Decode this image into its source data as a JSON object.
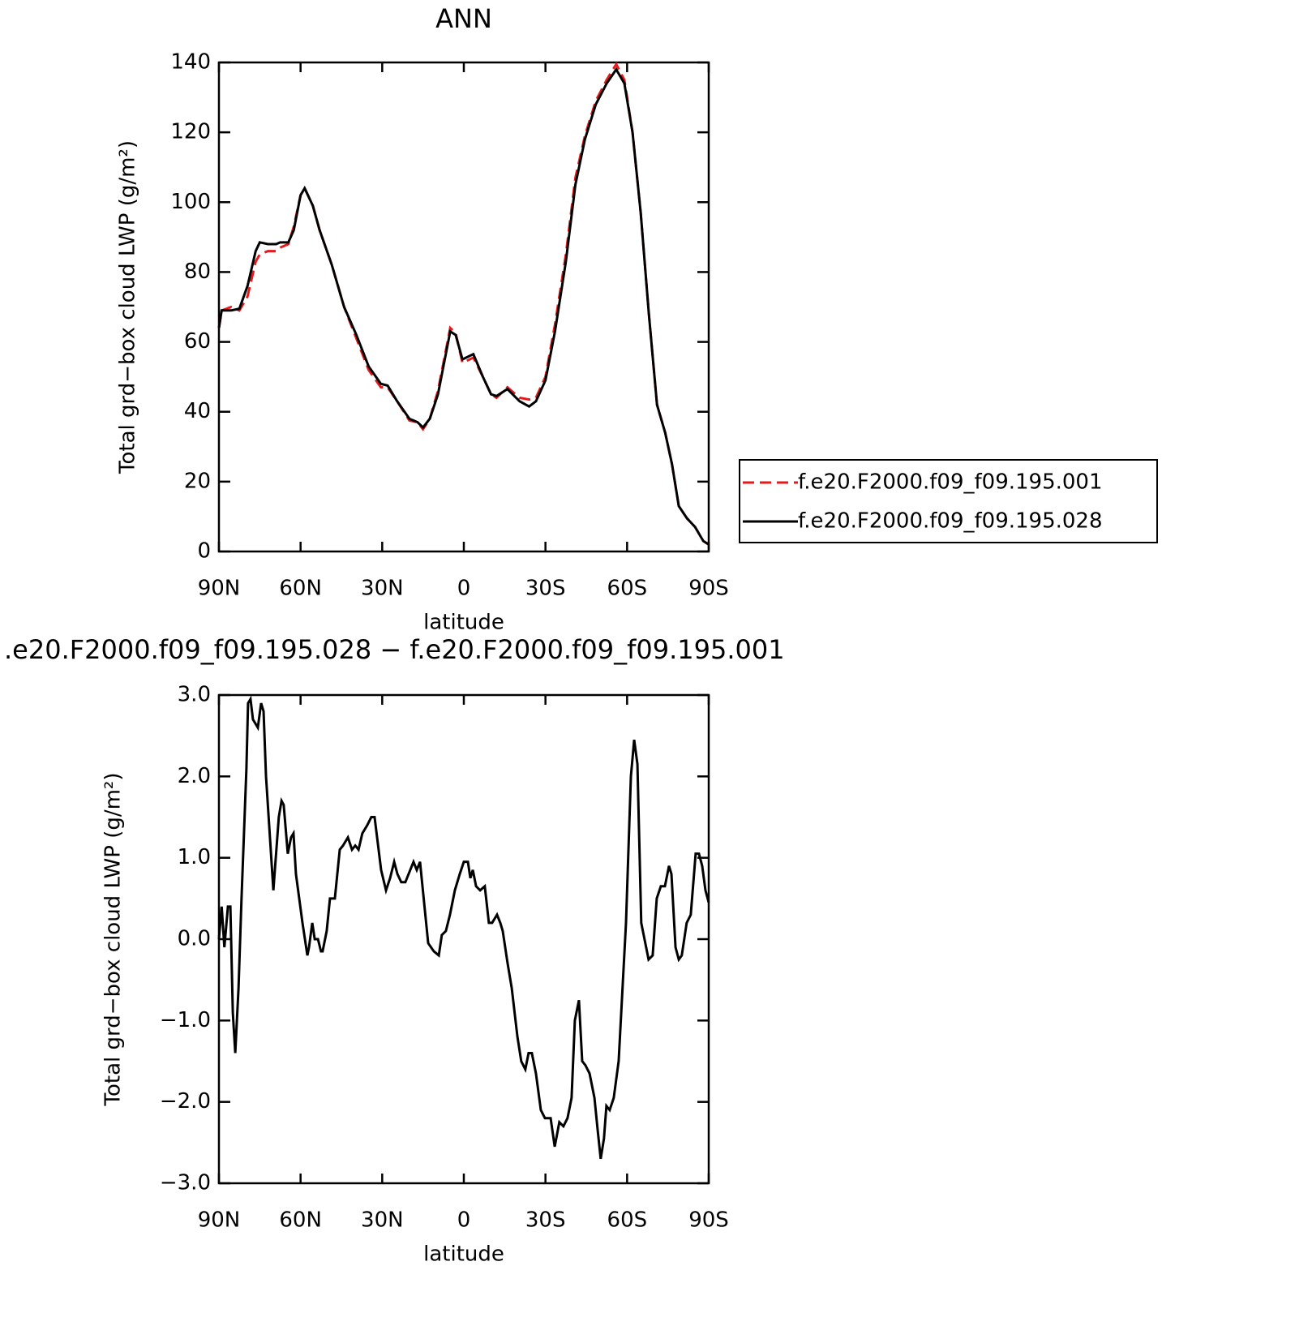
{
  "chart_data": [
    {
      "type": "line",
      "title": "ANN",
      "xlabel": "latitude",
      "ylabel": "Total grd−box cloud LWP (g/m²)",
      "xlim": [
        90,
        -90
      ],
      "xticks": [
        {
          "value": 90,
          "label": "90N"
        },
        {
          "value": 60,
          "label": "60N"
        },
        {
          "value": 30,
          "label": "30N"
        },
        0,
        {
          "value": -30,
          "label": "30S"
        },
        {
          "value": -60,
          "label": "60S"
        },
        {
          "value": -90,
          "label": "90S"
        }
      ],
      "ylim": [
        0,
        140
      ],
      "yticks": [
        0,
        20,
        40,
        60,
        80,
        100,
        120,
        140
      ],
      "legend": "right",
      "x": [
        90,
        89,
        85.5,
        82.5,
        79.5,
        76.5,
        75,
        72,
        69,
        67.5,
        64.5,
        62.5,
        60,
        58.5,
        55.5,
        53,
        48.5,
        44,
        39.5,
        35,
        30.5,
        28,
        24.5,
        20,
        17,
        15,
        12.5,
        9.5,
        7,
        5,
        3,
        0.5,
        -3.5,
        -7,
        -10,
        -12,
        -16,
        -20.5,
        -24,
        -26.5,
        -30,
        -33.5,
        -37.5,
        -41,
        -44.5,
        -48.5,
        -52.5,
        -56,
        -59,
        -62,
        -65,
        -68,
        -71,
        -74,
        -76.5,
        -79,
        -82,
        -85,
        -88,
        -90
      ],
      "series": [
        {
          "name": "f.e20.F2000.f09_f09.195.001",
          "color": "#e8191c",
          "linestyle": "dashed",
          "values": [
            64,
            69,
            70,
            69,
            73,
            83,
            85,
            86,
            86,
            87,
            88,
            93,
            102,
            104,
            99,
            92,
            82,
            70,
            61,
            52,
            47,
            47,
            43,
            37.5,
            37,
            35,
            38,
            46,
            56,
            64,
            62.5,
            54,
            55.5,
            50,
            45,
            44,
            47,
            44,
            43.5,
            44,
            50,
            65,
            85,
            107,
            119,
            129,
            135,
            139.5,
            135,
            120,
            97,
            68,
            42,
            34,
            25,
            13,
            9.5,
            7,
            3,
            2
          ]
        },
        {
          "name": "f.e20.F2000.f09_f09.195.028",
          "color": "#000000",
          "linestyle": "solid",
          "values": [
            64,
            69,
            69,
            69.5,
            76,
            86,
            88.5,
            88,
            88,
            88.5,
            88.5,
            92,
            102,
            104,
            99,
            92,
            82,
            70,
            62,
            53,
            48,
            47.5,
            43,
            38,
            37,
            35.5,
            38,
            45,
            55,
            63,
            62,
            55,
            56.5,
            50,
            45,
            44.5,
            46.5,
            43,
            41.5,
            43,
            49,
            63,
            83,
            105,
            118,
            128,
            134,
            138,
            134,
            120,
            97,
            68,
            42,
            34,
            25,
            13,
            9.5,
            7,
            3,
            2
          ]
        }
      ]
    },
    {
      "type": "line",
      "title": ".e20.F2000.f09_f09.195.028 − f.e20.F2000.f09_f09.195.001",
      "xlabel": "latitude",
      "ylabel": "Total grd−box cloud LWP (g/m²)",
      "xlim": [
        90,
        -90
      ],
      "xticks": [
        {
          "value": 90,
          "label": "90N"
        },
        {
          "value": 60,
          "label": "60N"
        },
        {
          "value": 30,
          "label": "30N"
        },
        0,
        {
          "value": -30,
          "label": "30S"
        },
        {
          "value": -60,
          "label": "60S"
        },
        {
          "value": -90,
          "label": "90S"
        }
      ],
      "ylim": [
        -3,
        3
      ],
      "yticks": [
        {
          "value": -3,
          "label": "−3.0"
        },
        {
          "value": -2,
          "label": "−2.0"
        },
        {
          "value": -1,
          "label": "−1.0"
        },
        {
          "value": 0,
          "label": "0.0"
        },
        {
          "value": 1,
          "label": "1.0"
        },
        {
          "value": 2,
          "label": "2.0"
        },
        {
          "value": 3,
          "label": "3.0"
        }
      ],
      "color": "#000000",
      "x": [
        90,
        89,
        88,
        86.7,
        85.8,
        84.9,
        84,
        82.8,
        81.7,
        79.9,
        79.3,
        78.4,
        77.5,
        75.7,
        74.5,
        73.6,
        72.7,
        70,
        68,
        67,
        66.2,
        64.7,
        63.5,
        62.6,
        61.7,
        59.3,
        57.5,
        56.9,
        55.7,
        54.8,
        53.6,
        52.5,
        51.9,
        50.4,
        49.2,
        47.4,
        45.6,
        44.4,
        42.6,
        41.1,
        39.9,
        38.7,
        37.3,
        35.5,
        34,
        32.8,
        30.4,
        28.6,
        27.1,
        25.6,
        24.4,
        23,
        21.5,
        18.5,
        17.3,
        16.1,
        13.1,
        11,
        9.2,
        8.1,
        6.6,
        5.1,
        3.3,
        1.5,
        0,
        -1.5,
        -2.4,
        -3.3,
        -4.5,
        -6,
        -7.7,
        -9.2,
        -10.4,
        -12.2,
        -13.4,
        -14.3,
        -16.1,
        -17.6,
        -19.7,
        -21.1,
        -22.6,
        -23.8,
        -25,
        -26.5,
        -28.3,
        -29.8,
        -31.9,
        -33.4,
        -35.1,
        -36.6,
        -38.1,
        -39.6,
        -40.8,
        -42.3,
        -43.5,
        -44.7,
        -46.2,
        -48,
        -49.2,
        -50.3,
        -51.5,
        -52.4,
        -53.6,
        -55.1,
        -56.9,
        -59.6,
        -61.4,
        -62.6,
        -63.8,
        -65.2,
        -66.4,
        -67.9,
        -69.4,
        -70.9,
        -72.4,
        -73.9,
        -75.4,
        -76.3,
        -77.8,
        -79,
        -80.1,
        -81.9,
        -83.4,
        -85.2,
        -86.4,
        -87.6,
        -88.8,
        -90
      ],
      "values": [
        0,
        0.4,
        -0.1,
        0.4,
        0.4,
        -0.9,
        -1.4,
        -0.6,
        0.5,
        2.1,
        2.9,
        2.95,
        2.7,
        2.6,
        2.9,
        2.8,
        2.0,
        0.6,
        1.5,
        1.7,
        1.65,
        1.05,
        1.25,
        1.3,
        0.8,
        0.2,
        -0.2,
        -0.1,
        0.2,
        0,
        0,
        -0.15,
        -0.15,
        0.1,
        0.5,
        0.5,
        1.1,
        1.15,
        1.25,
        1.1,
        1.15,
        1.1,
        1.3,
        1.4,
        1.5,
        1.5,
        0.85,
        0.6,
        0.75,
        0.95,
        0.8,
        0.7,
        0.7,
        0.95,
        0.85,
        0.95,
        -0.05,
        -0.15,
        -0.2,
        0.05,
        0.1,
        0.3,
        0.6,
        0.8,
        0.95,
        0.95,
        0.75,
        0.85,
        0.65,
        0.6,
        0.65,
        0.2,
        0.2,
        0.3,
        0.2,
        0.1,
        -0.3,
        -0.6,
        -1.2,
        -1.5,
        -1.6,
        -1.4,
        -1.4,
        -1.65,
        -2.1,
        -2.2,
        -2.2,
        -2.55,
        -2.25,
        -2.3,
        -2.2,
        -1.95,
        -1.0,
        -0.75,
        -1.5,
        -1.55,
        -1.65,
        -1.95,
        -2.35,
        -2.7,
        -2.45,
        -2.05,
        -2.1,
        -1.95,
        -1.5,
        0.2,
        2.0,
        2.45,
        2.15,
        0.2,
        0,
        -0.25,
        -0.2,
        0.5,
        0.65,
        0.65,
        0.9,
        0.8,
        -0.1,
        -0.25,
        -0.2,
        0.2,
        0.3,
        1.05,
        1.05,
        0.9,
        0.6,
        0.45
      ]
    }
  ]
}
